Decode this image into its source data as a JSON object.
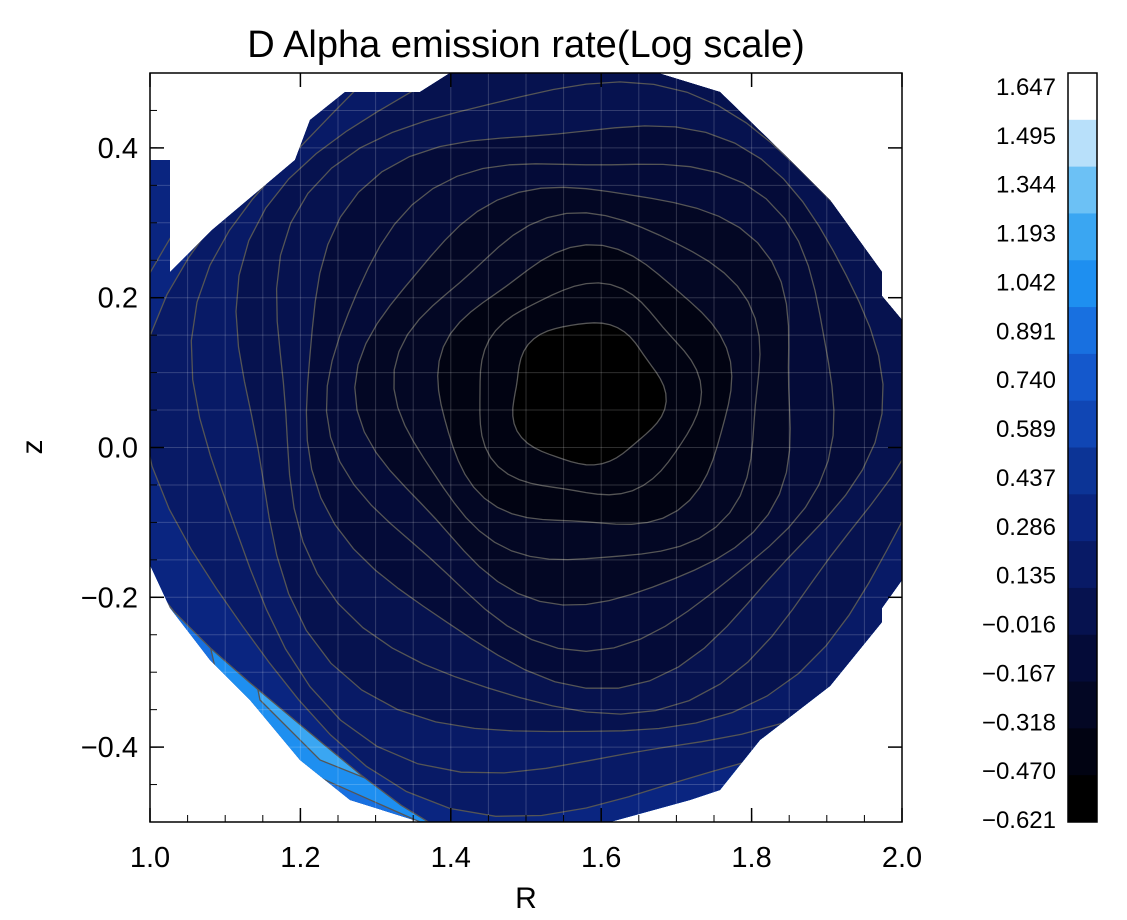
{
  "chart_data": {
    "type": "heatmap",
    "subtype": "filled-contour",
    "title": "D Alpha emission rate(Log scale)",
    "xlabel": "R",
    "ylabel": "z",
    "xlim": [
      1.0,
      2.0
    ],
    "ylim": [
      -0.5,
      0.5
    ],
    "x_ticks": [
      "1.0",
      "1.2",
      "1.4",
      "1.6",
      "1.8",
      "2.0"
    ],
    "y_ticks": [
      "0.4",
      "0.2",
      "0.0",
      "−0.2",
      "−0.4"
    ],
    "y_tick_values": [
      0.4,
      0.2,
      0.0,
      -0.2,
      -0.4
    ],
    "x_tick_values": [
      1.0,
      1.2,
      1.4,
      1.6,
      1.8,
      2.0
    ],
    "grid": true,
    "domain_shape": "polygon (clipped disc)",
    "center": {
      "R": 1.58,
      "z": 0.07
    },
    "colorbar": {
      "position": "right",
      "levels": [
        "1.647",
        "1.495",
        "1.344",
        "1.193",
        "1.042",
        "0.891",
        "0.740",
        "0.589",
        "0.437",
        "0.286",
        "0.135",
        "−0.016",
        "−0.167",
        "−0.318",
        "−0.470",
        "−0.621"
      ],
      "level_values": [
        1.647,
        1.495,
        1.344,
        1.193,
        1.042,
        0.891,
        0.74,
        0.589,
        0.437,
        0.286,
        0.135,
        -0.016,
        -0.167,
        -0.318,
        -0.47,
        -0.621
      ],
      "colors": [
        "#ffffff",
        "#b8e0fa",
        "#6cc1f5",
        "#3aa6f2",
        "#1e8ff0",
        "#1870e0",
        "#1458cc",
        "#1046b4",
        "#0c3496",
        "#0a2580",
        "#081a66",
        "#06124f",
        "#040b38",
        "#030724",
        "#010312",
        "#000000"
      ]
    },
    "contour_line_color": "#555555"
  }
}
